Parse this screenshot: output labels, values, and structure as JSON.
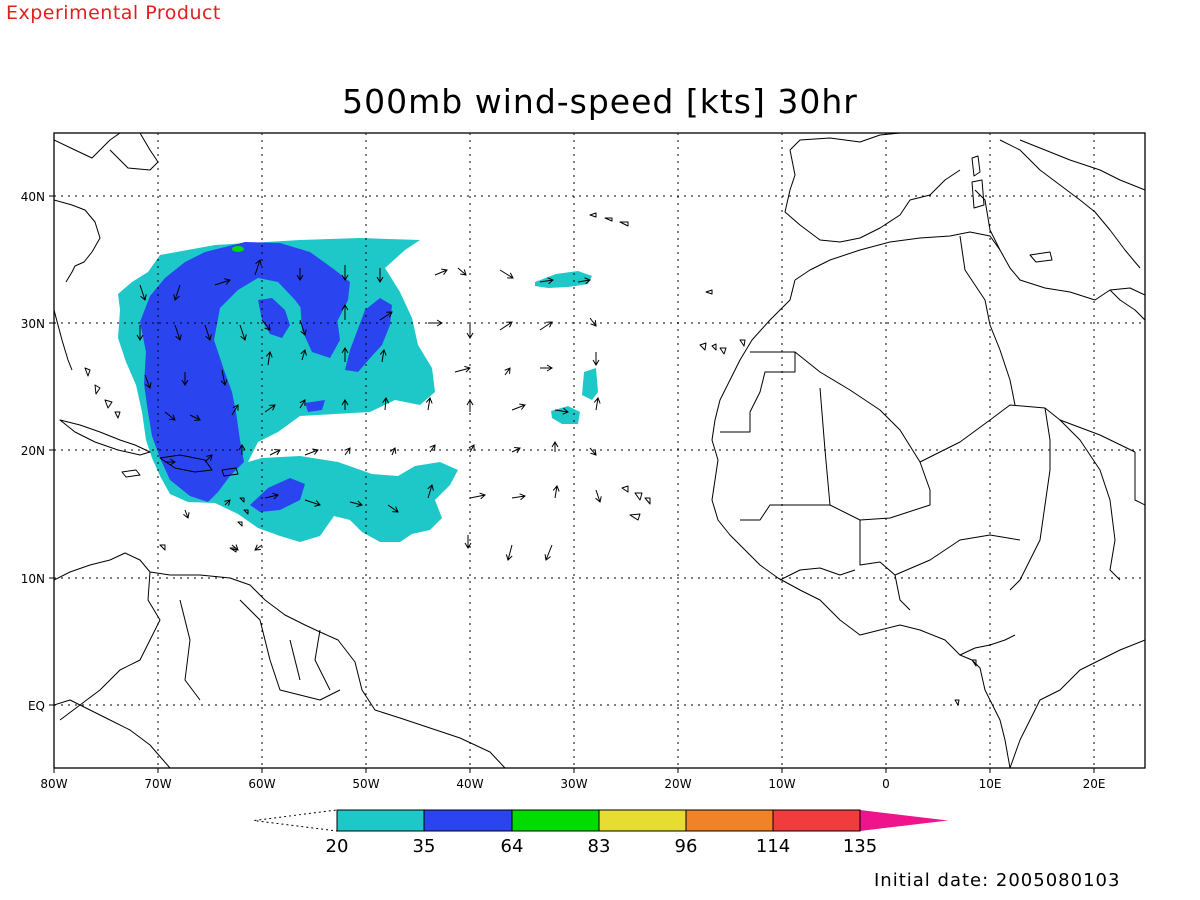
{
  "header": {
    "experimental_label": "Experimental Product",
    "title": "500mb wind-speed [kts] 30hr"
  },
  "axes": {
    "x_ticks": [
      "80W",
      "70W",
      "60W",
      "50W",
      "40W",
      "30W",
      "20W",
      "10W",
      "0",
      "10E",
      "20E"
    ],
    "y_ticks": [
      "40N",
      "30N",
      "20N",
      "10N",
      "EQ"
    ],
    "lon_range": [
      -80,
      25
    ],
    "lat_range": [
      -5,
      45
    ]
  },
  "color_scale": {
    "levels": [
      "20",
      "35",
      "64",
      "83",
      "96",
      "114",
      "135"
    ],
    "colors": [
      "#1fc8c8",
      "#2a45f0",
      "#00dc00",
      "#e6dc32",
      "#f08228",
      "#f03c3c",
      "#f0148c"
    ]
  },
  "footer": {
    "initial_date": "Initial date: 2005080103"
  },
  "map_data": {
    "field": "500mb wind-speed",
    "units": "kts",
    "forecast_hour": "30hr",
    "grid": "dotted"
  }
}
